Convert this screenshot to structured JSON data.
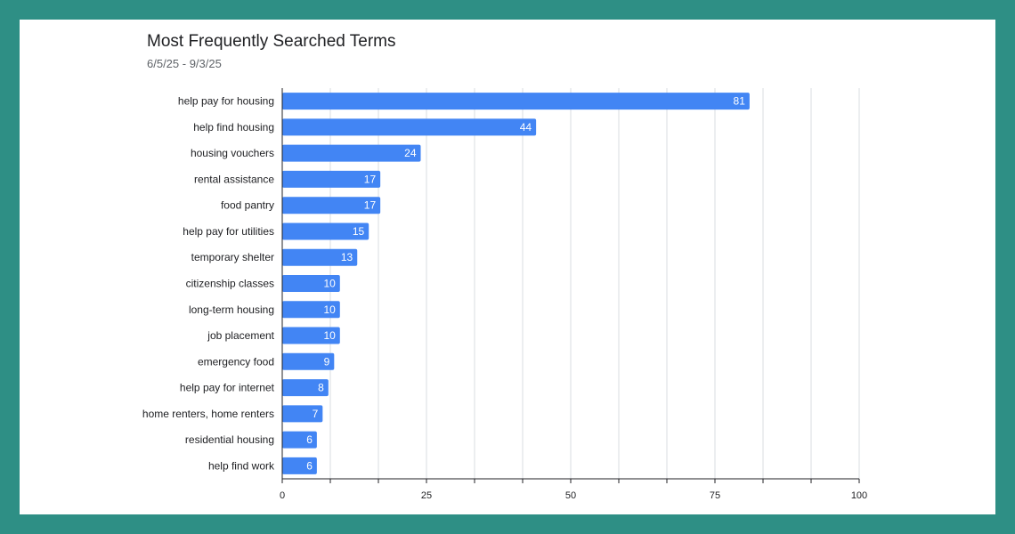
{
  "colors": {
    "frame": "#2e8f85",
    "bar": "#4285f4",
    "grid": "#dadce0",
    "axis": "#202124"
  },
  "chart_data": {
    "type": "bar",
    "orientation": "horizontal",
    "title": "Most Frequently Searched Terms",
    "subtitle": "6/5/25 - 9/3/25",
    "xlabel": "",
    "ylabel": "",
    "xlim": [
      0,
      100
    ],
    "x_ticks": [
      0,
      25,
      50,
      75,
      100
    ],
    "grid": true,
    "categories": [
      "help pay for housing",
      "help find housing",
      "housing vouchers",
      "rental assistance",
      "food pantry",
      "help pay for utilities",
      "temporary shelter",
      "citizenship classes",
      "long-term housing",
      "job placement",
      "emergency food",
      "help pay for internet",
      "home renters, home renters",
      "residential housing",
      "help find work"
    ],
    "values": [
      81,
      44,
      24,
      17,
      17,
      15,
      13,
      10,
      10,
      10,
      9,
      8,
      7,
      6,
      6
    ]
  }
}
